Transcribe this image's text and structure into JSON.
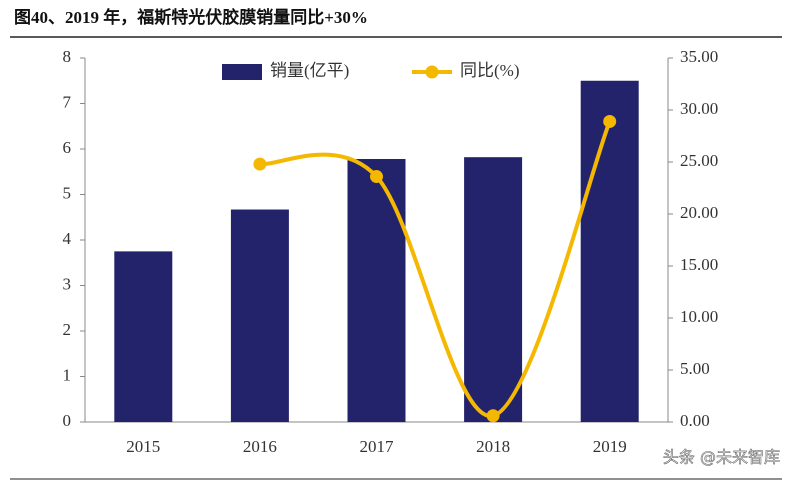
{
  "chart_data": {
    "type": "bar",
    "title": "图40、2019 年，福斯特光伏胶膜销量同比+30%",
    "watermark": "头条 @未来智库",
    "categories": [
      "2015",
      "2016",
      "2017",
      "2018",
      "2019"
    ],
    "series": [
      {
        "name": "销量(亿平)",
        "color": "#23236b",
        "values": [
          3.75,
          4.67,
          5.78,
          5.82,
          7.5
        ]
      },
      {
        "name": "同比(%)",
        "color": "#f5b800",
        "values": [
          null,
          24.8,
          23.6,
          0.6,
          28.9
        ],
        "axis": "y2"
      }
    ],
    "ylim": [
      0,
      8
    ],
    "yticks": [
      0,
      1,
      2,
      3,
      4,
      5,
      6,
      7,
      8
    ],
    "y2lim": [
      0,
      35
    ],
    "y2ticks": [
      {
        "value": 0,
        "label": "0.00"
      },
      {
        "value": 5,
        "label": "5.00"
      },
      {
        "value": 10,
        "label": "10.00"
      },
      {
        "value": 15,
        "label": "15.00"
      },
      {
        "value": 20,
        "label": "20.00"
      },
      {
        "value": 25,
        "label": "25.00"
      },
      {
        "value": 30,
        "label": "30.00"
      },
      {
        "value": 35,
        "label": "35.00"
      }
    ],
    "legend": "top"
  }
}
